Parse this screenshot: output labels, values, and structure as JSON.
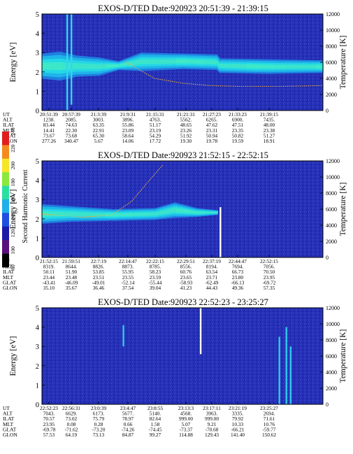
{
  "chart_data": [
    {
      "type": "heatmap",
      "title": "EXOS-D/TED   Date:920923  20:51:39 - 21:39:15",
      "ylabel_left": "Energy [eV]",
      "ylabel_right": "Temperature [K]",
      "ylim": [
        0,
        5
      ],
      "y2lim": [
        0,
        12000
      ],
      "y_ticks": [
        "0",
        "1",
        "2",
        "3",
        "4",
        "5"
      ],
      "y2_ticks": [
        "0",
        "2000",
        "4000",
        "6000",
        "8000",
        "10000",
        "12000"
      ],
      "band": {
        "description_points": [
          {
            "t": 0.0,
            "low": 1.65,
            "high": 2.95
          },
          {
            "t": 0.06,
            "low": 1.55,
            "high": 3.05
          },
          {
            "t": 0.12,
            "low": 1.75,
            "high": 2.85
          },
          {
            "t": 0.2,
            "low": 1.8,
            "high": 2.75
          },
          {
            "t": 0.27,
            "low": 2.1,
            "high": 2.55
          },
          {
            "t": 0.35,
            "low": 2.05,
            "high": 3.0
          },
          {
            "t": 0.5,
            "low": 2.15,
            "high": 2.95
          },
          {
            "t": 0.62,
            "low": 2.1,
            "high": 2.9
          },
          {
            "t": 0.63,
            "low": 1.95,
            "high": 2.7
          },
          {
            "t": 0.8,
            "low": 1.9,
            "high": 2.65
          },
          {
            "t": 1.0,
            "low": 1.95,
            "high": 2.6
          }
        ]
      },
      "temperature_trace_K": [
        {
          "t": 0.3,
          "K": 6000
        },
        {
          "t": 0.4,
          "K": 4000
        },
        {
          "t": 0.5,
          "K": 3400
        },
        {
          "t": 0.6,
          "K": 3100
        },
        {
          "t": 0.7,
          "K": 3000
        },
        {
          "t": 0.85,
          "K": 3000
        },
        {
          "t": 1.0,
          "K": 3100
        }
      ],
      "spikes": [
        {
          "t": 0.09,
          "low": 0.0,
          "high": 5.0
        },
        {
          "t": 0.105,
          "low": 0.3,
          "high": 5.0
        }
      ],
      "ephemeris_labels": [
        "UT",
        "ALT",
        "ILAT",
        "MLT",
        "GLAT",
        "GLON"
      ],
      "ephemeris": [
        [
          "20:51:39",
          "20:57:39",
          "21:3:39",
          "21:9:31",
          "21:15:31",
          "21:21:31",
          "21:27:23",
          "21:33:23",
          "21:39:15"
        ],
        [
          "1238.",
          "2085.",
          "3003.",
          "3896.",
          "4763.",
          "5562.",
          "6265.",
          "6900.",
          "7435."
        ],
        [
          "83.44",
          "74.63",
          "63.35",
          "55.86",
          "51.17",
          "48.65",
          "47.62",
          "47.51",
          "48.00"
        ],
        [
          "14.41",
          "22.30",
          "22.91",
          "23.09",
          "23.19",
          "23.26",
          "23.31",
          "23.35",
          "23.38"
        ],
        [
          "73.67",
          "73.68",
          "65.30",
          "58.64",
          "54.29",
          "51.92",
          "50.94",
          "50.82",
          "51.27"
        ],
        [
          "277.26",
          "340.47",
          "5.67",
          "14.06",
          "17.72",
          "19.30",
          "19.78",
          "19.59",
          "18.91"
        ]
      ]
    },
    {
      "type": "heatmap",
      "title": "EXOS-D/TED   Date:920923  21:52:15 - 22:52:15",
      "ylabel_left": "Energy [eV]",
      "ylabel_right": "Temperature [K]",
      "ylim": [
        0,
        5
      ],
      "y2lim": [
        0,
        12000
      ],
      "y_ticks": [
        "0",
        "1",
        "2",
        "3",
        "4",
        "5"
      ],
      "y2_ticks": [
        "0",
        "2000",
        "4000",
        "6000",
        "8000",
        "10000",
        "12000"
      ],
      "band": {
        "description_points": [
          {
            "t": 0.0,
            "low": 1.75,
            "high": 2.75
          },
          {
            "t": 0.1,
            "low": 1.85,
            "high": 2.65
          },
          {
            "t": 0.25,
            "low": 1.9,
            "high": 2.5
          },
          {
            "t": 0.4,
            "low": 1.95,
            "high": 2.55
          },
          {
            "t": 0.47,
            "low": 2.05,
            "high": 2.85
          },
          {
            "t": 0.55,
            "low": 2.1,
            "high": 2.55
          },
          {
            "t": 0.62,
            "low": 2.2,
            "high": 2.45
          }
        ]
      },
      "temperature_trace_K": [
        {
          "t": 0.0,
          "K": 5400
        },
        {
          "t": 0.15,
          "K": 5000
        },
        {
          "t": 0.25,
          "K": 5300
        },
        {
          "t": 0.32,
          "K": 7000
        },
        {
          "t": 0.38,
          "K": 9500
        },
        {
          "t": 0.43,
          "K": 11500
        }
      ],
      "spikes": [
        {
          "t": 0.635,
          "low": 0.0,
          "high": 2.6
        }
      ],
      "colorbar": {
        "label": "Second Harmonic Current",
        "ticks": [
          "80",
          "100",
          "120",
          "140",
          "160",
          "180",
          "200",
          "220",
          "240"
        ],
        "colors": [
          "#000000",
          "#5a0f7a",
          "#1a1aa8",
          "#1e4fe0",
          "#1fb0e8",
          "#2ae0a0",
          "#8ce83a",
          "#f5e628",
          "#f58a1e",
          "#e01e1e"
        ]
      },
      "ephemeris_labels": [
        "UT",
        "ALT",
        "ILAT",
        "MLT",
        "GLAT",
        "GLON"
      ],
      "ephemeris": [
        [
          "21:52:15",
          "21:59:51",
          "22:7:19",
          "22:14:47",
          "22:22:15",
          "22:29:51",
          "22:37:19",
          "22:44:47",
          "22:52:15"
        ],
        [
          "8319.",
          "8644.",
          "8826.",
          "8873.",
          "8785.",
          "8556.",
          "8194.",
          "7694.",
          "7056."
        ],
        [
          "50.11",
          "51.90",
          "53.85",
          "55.95",
          "58.23",
          "60.76",
          "63.54",
          "66.73",
          "70.50"
        ],
        [
          "23.44",
          "23.48",
          "23.51",
          "23.55",
          "23.59",
          "23.65",
          "23.71",
          "23.80",
          "23.95"
        ],
        [
          "-43.41",
          "-46.09",
          "-49.01",
          "-52.14",
          "-55.44",
          "-58.93",
          "-62.49",
          "-66.13",
          "-69.72"
        ],
        [
          "35.10",
          "35.67",
          "36.46",
          "37.54",
          "39.04",
          "41.23",
          "44.43",
          "49.36",
          "57.35"
        ]
      ]
    },
    {
      "type": "heatmap",
      "title": "EXOS-D/TED   Date:920923  22:52:23 - 23:25:27",
      "ylabel_left": "Energy [eV]",
      "ylabel_right": "Temperature [K]",
      "ylim": [
        0,
        5
      ],
      "y2lim": [
        0,
        12000
      ],
      "y_ticks": [
        "0",
        "1",
        "2",
        "3",
        "4",
        "5"
      ],
      "y2_ticks": [
        "0",
        "2000",
        "4000",
        "6000",
        "8000",
        "10000",
        "12000"
      ],
      "band": {
        "description_points": []
      },
      "temperature_trace_K": [],
      "spikes": [
        {
          "t": 0.29,
          "low": 3.0,
          "high": 4.1
        },
        {
          "t": 0.565,
          "low": 2.6,
          "high": 5.0
        },
        {
          "t": 0.845,
          "low": 0.0,
          "high": 3.5
        },
        {
          "t": 0.87,
          "low": 0.0,
          "high": 4.0
        },
        {
          "t": 0.885,
          "low": 0.0,
          "high": 3.0
        }
      ],
      "ephemeris_labels": [
        "UT",
        "ALT",
        "ILAT",
        "MLT",
        "GLAT",
        "GLON"
      ],
      "ephemeris": [
        [
          "22:52:23",
          "22:56:31",
          "23:0:39",
          "23:4:47",
          "23:8:55",
          "23:13:3",
          "23:17:11",
          "23:21:19",
          "23:25:27"
        ],
        [
          "7043.",
          "6629.",
          "6173.",
          "5677.",
          "5140.",
          "4568.",
          "3963.",
          "3335.",
          "2694."
        ],
        [
          "70.57",
          "73.02",
          "75.79",
          "78.97",
          "82.64",
          "999.00",
          "999.00",
          "79.92",
          "71.61"
        ],
        [
          "23.95",
          "0.08",
          "0.28",
          "0.66",
          "1.58",
          "5.07",
          "9.21",
          "10.33",
          "10.76"
        ],
        [
          "-69.78",
          "-71.62",
          "-73.20",
          "-74.26",
          "-74.45",
          "-73.37",
          "-70.68",
          "-66.21",
          "-59.77"
        ],
        [
          "57.53",
          "64.19",
          "73.13",
          "84.87",
          "99.27",
          "114.88",
          "129.43",
          "141.40",
          "150.62"
        ]
      ]
    }
  ]
}
